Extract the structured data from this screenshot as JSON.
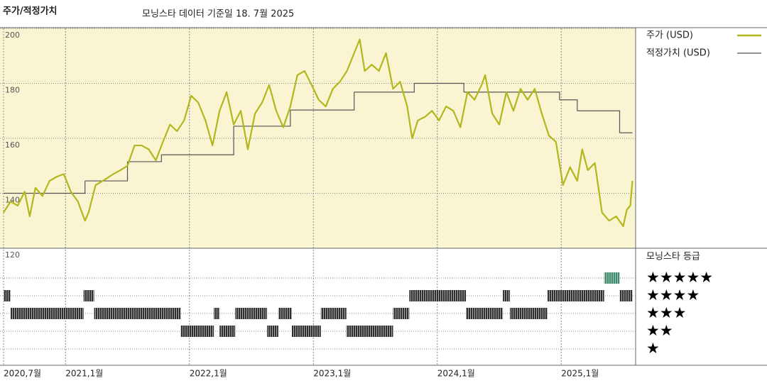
{
  "title": "주가/적정가치",
  "subtitle": "모닝스타 데이터 기준일 18. 7월 2025",
  "chart_data": {
    "type": "line",
    "xlim": [
      2020.5,
      2025.6
    ],
    "xticks": [
      {
        "value": 2020.5,
        "label": "2020,7월"
      },
      {
        "value": 2021,
        "label": "2021,1월"
      },
      {
        "value": 2022,
        "label": "2022,1월"
      },
      {
        "value": 2023,
        "label": "2023,1월"
      },
      {
        "value": 2024,
        "label": "2024,1월"
      },
      {
        "value": 2025,
        "label": "2025,1월"
      }
    ],
    "ylim": [
      120,
      200
    ],
    "yticks": [
      120,
      140,
      160,
      180,
      200
    ],
    "grid": true,
    "background": "#f9f5d3",
    "series": [
      {
        "name": "주가 (USD)",
        "color": "#b3b61c",
        "x": [
          2020.5,
          2020.557,
          2020.614,
          2020.671,
          2020.711,
          2020.757,
          2020.814,
          2020.871,
          2020.929,
          2020.986,
          2021.043,
          2021.1,
          2021.157,
          2021.186,
          2021.243,
          2021.3,
          2021.386,
          2021.443,
          2021.5,
          2021.557,
          2021.614,
          2021.671,
          2021.729,
          2021.786,
          2021.843,
          2021.9,
          2021.957,
          2022.014,
          2022.071,
          2022.129,
          2022.186,
          2022.243,
          2022.3,
          2022.357,
          2022.414,
          2022.471,
          2022.529,
          2022.586,
          2022.643,
          2022.7,
          2022.757,
          2022.814,
          2022.871,
          2022.929,
          2022.986,
          2023.043,
          2023.1,
          2023.157,
          2023.214,
          2023.271,
          2023.329,
          2023.374,
          2023.414,
          2023.471,
          2023.529,
          2023.586,
          2023.643,
          2023.7,
          2023.757,
          2023.797,
          2023.843,
          2023.9,
          2023.957,
          2024.014,
          2024.071,
          2024.129,
          2024.186,
          2024.243,
          2024.3,
          2024.357,
          2024.386,
          2024.443,
          2024.5,
          2024.557,
          2024.614,
          2024.671,
          2024.729,
          2024.786,
          2024.843,
          2024.9,
          2024.957,
          2025.014,
          2025.071,
          2025.129,
          2025.169,
          2025.214,
          2025.271,
          2025.329,
          2025.386,
          2025.443,
          2025.5,
          2025.529,
          2025.557,
          2025.574
        ],
        "values": [
          133,
          137,
          135.5,
          140.6,
          131.6,
          142,
          139,
          144.5,
          146,
          147,
          140.6,
          137,
          130,
          133,
          143,
          144.5,
          147,
          148.4,
          150,
          157.4,
          157.4,
          156,
          152,
          158.7,
          165,
          162.6,
          166.5,
          175.5,
          173,
          166.5,
          157.4,
          170,
          176.8,
          165,
          170,
          156,
          169,
          173,
          179.4,
          170,
          164,
          171.6,
          183,
          184.5,
          179.4,
          174,
          171.6,
          178,
          180.6,
          184.5,
          191,
          196,
          184.5,
          186.8,
          184.5,
          191,
          178,
          180.6,
          171.6,
          160,
          166.5,
          167.8,
          170,
          166.5,
          171.6,
          170,
          164,
          176.8,
          174,
          179.4,
          183,
          169,
          165,
          176.8,
          170,
          178,
          174,
          178,
          169,
          161,
          158.7,
          143,
          149.5,
          144.5,
          156,
          148.4,
          151,
          133,
          130,
          131.6,
          128,
          134,
          135.5,
          144.5
        ]
      },
      {
        "name": "적정가치 (USD)",
        "color": "#555555",
        "step": true,
        "x": [
          2020.5,
          2021.157,
          2021.5,
          2021.774,
          2022.357,
          2022.814,
          2023.329,
          2023.814,
          2024.214,
          2024.986,
          2025.129,
          2025.471,
          2025.574
        ],
        "values": [
          140,
          144.5,
          151.5,
          154,
          164.4,
          170.3,
          176.8,
          180,
          176.8,
          174,
          170,
          162,
          162
        ]
      }
    ],
    "rating_title": "모닝스타 등급",
    "rating_levels": [
      "★★★★★",
      "★★★★",
      "★★★",
      "★★",
      "★"
    ],
    "rating_color": "#2f2f2f",
    "top_rating_color": "#3d8c6e",
    "rating_periods": {
      "start": [
        2020.5,
        2020.557,
        2021.146,
        2021.231,
        2021.929,
        2022.197,
        2022.243,
        2022.369,
        2022.626,
        2022.717,
        2022.826,
        2023.06,
        2023.266,
        2023.643,
        2023.774,
        2024.231,
        2024.529,
        2024.586,
        2024.889,
        2025.346,
        2025.471
      ],
      "end": [
        2020.557,
        2021.146,
        2021.231,
        2021.929,
        2022.197,
        2022.243,
        2022.369,
        2022.626,
        2022.717,
        2022.826,
        2023.06,
        2023.266,
        2023.643,
        2023.774,
        2024.231,
        2024.529,
        2024.586,
        2024.889,
        2025.346,
        2025.471,
        2025.574
      ],
      "stars": [
        4,
        3,
        4,
        3,
        2,
        3,
        2,
        3,
        2,
        3,
        2,
        3,
        2,
        3,
        4,
        3,
        4,
        3,
        4,
        5,
        4
      ]
    }
  }
}
